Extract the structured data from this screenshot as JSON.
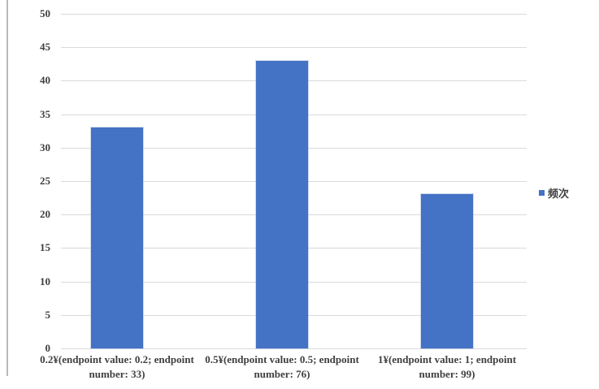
{
  "chart_data": {
    "type": "bar",
    "title": "",
    "xlabel": "",
    "ylabel": "",
    "categories": [
      {
        "line1": "0.2¥(endpoint value: 0.2; endpoint",
        "line2": "number: 33)"
      },
      {
        "line1": "0.5¥(endpoint value: 0.5; endpoint",
        "line2": "number: 76)"
      },
      {
        "line1": "1¥(endpoint value: 1; endpoint",
        "line2": "number: 99)"
      }
    ],
    "series": [
      {
        "name": "频次",
        "values": [
          33,
          43,
          23
        ]
      }
    ],
    "ylim": [
      0,
      50
    ],
    "yticks": [
      0,
      5,
      10,
      15,
      20,
      25,
      30,
      35,
      40,
      45,
      50
    ],
    "grid": "horizontal-on",
    "legend": {
      "label": "频次",
      "position": "right",
      "marker_color": "#4472c4"
    },
    "colors": {
      "bar": "#4472c4",
      "gridline": "#dadada",
      "text": "#3f3f3f",
      "background": "#ffffff",
      "window_border": "#b9b9b9"
    }
  }
}
